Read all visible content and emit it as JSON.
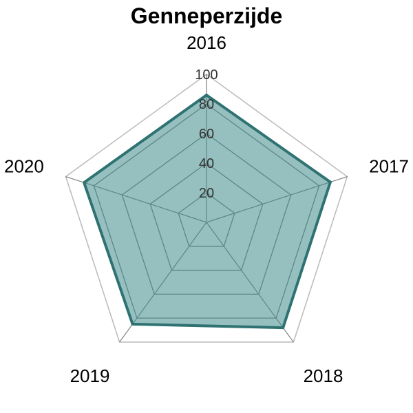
{
  "chart_data": {
    "type": "radar",
    "title": "Genneperzijde",
    "categories": [
      "2016",
      "2017",
      "2018",
      "2019",
      "2020"
    ],
    "series": [
      {
        "values": [
          86,
          88,
          88,
          85,
          87
        ]
      }
    ],
    "rlim": [
      0,
      100
    ],
    "ticks": [
      "20",
      "40",
      "60",
      "80",
      "100"
    ],
    "tick_values": [
      20,
      40,
      60,
      80,
      100
    ],
    "colors": {
      "fill": "#3f8a8a",
      "fill_opacity": 0.55,
      "line": "#2f7272",
      "grid": "#808080",
      "outer": "#bdbdbd"
    }
  }
}
